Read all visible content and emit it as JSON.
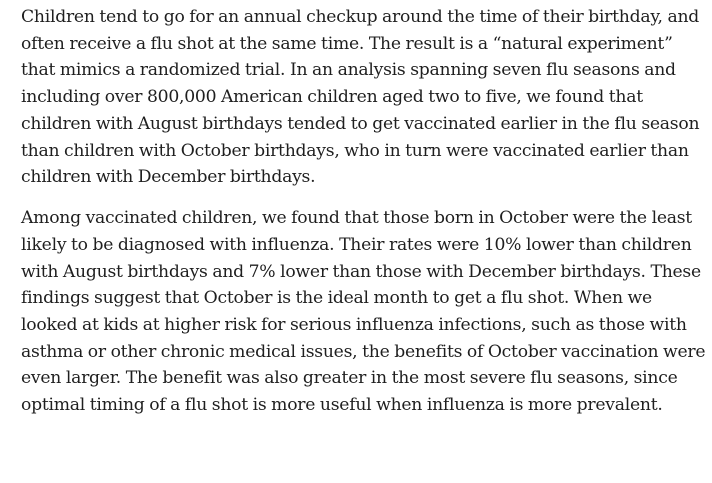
{
  "article": {
    "paragraphs": [
      {
        "lines": [
          "Children tend to go for an annual checkup around the time of their birthday, and",
          "often receive a flu shot at the same time. The result is a “natural experiment”",
          "that mimics a randomized trial. In an analysis spanning seven flu seasons and",
          "including over 800,000 American children aged two to five, we found that",
          "children with August birthdays tended to get vaccinated earlier in the flu season",
          "than children with October birthdays, who in turn were vaccinated earlier than",
          "children with December birthdays."
        ]
      },
      {
        "lines": [
          "Among vaccinated children, we found that those born in October were the least",
          "likely to be diagnosed with influenza. Their rates were 10% lower than children",
          "with August birthdays and 7% lower than those with December birthdays. These",
          "findings suggest that October is the ideal month to get a flu shot. When we",
          "looked at kids at higher risk for serious influenza infections, such as those with",
          "asthma or other chronic medical issues, the benefits of October vaccination were",
          "even larger. The benefit was also greater in the most severe flu seasons, since",
          "optimal timing of a flu shot is more useful when influenza is more prevalent."
        ]
      }
    ]
  }
}
